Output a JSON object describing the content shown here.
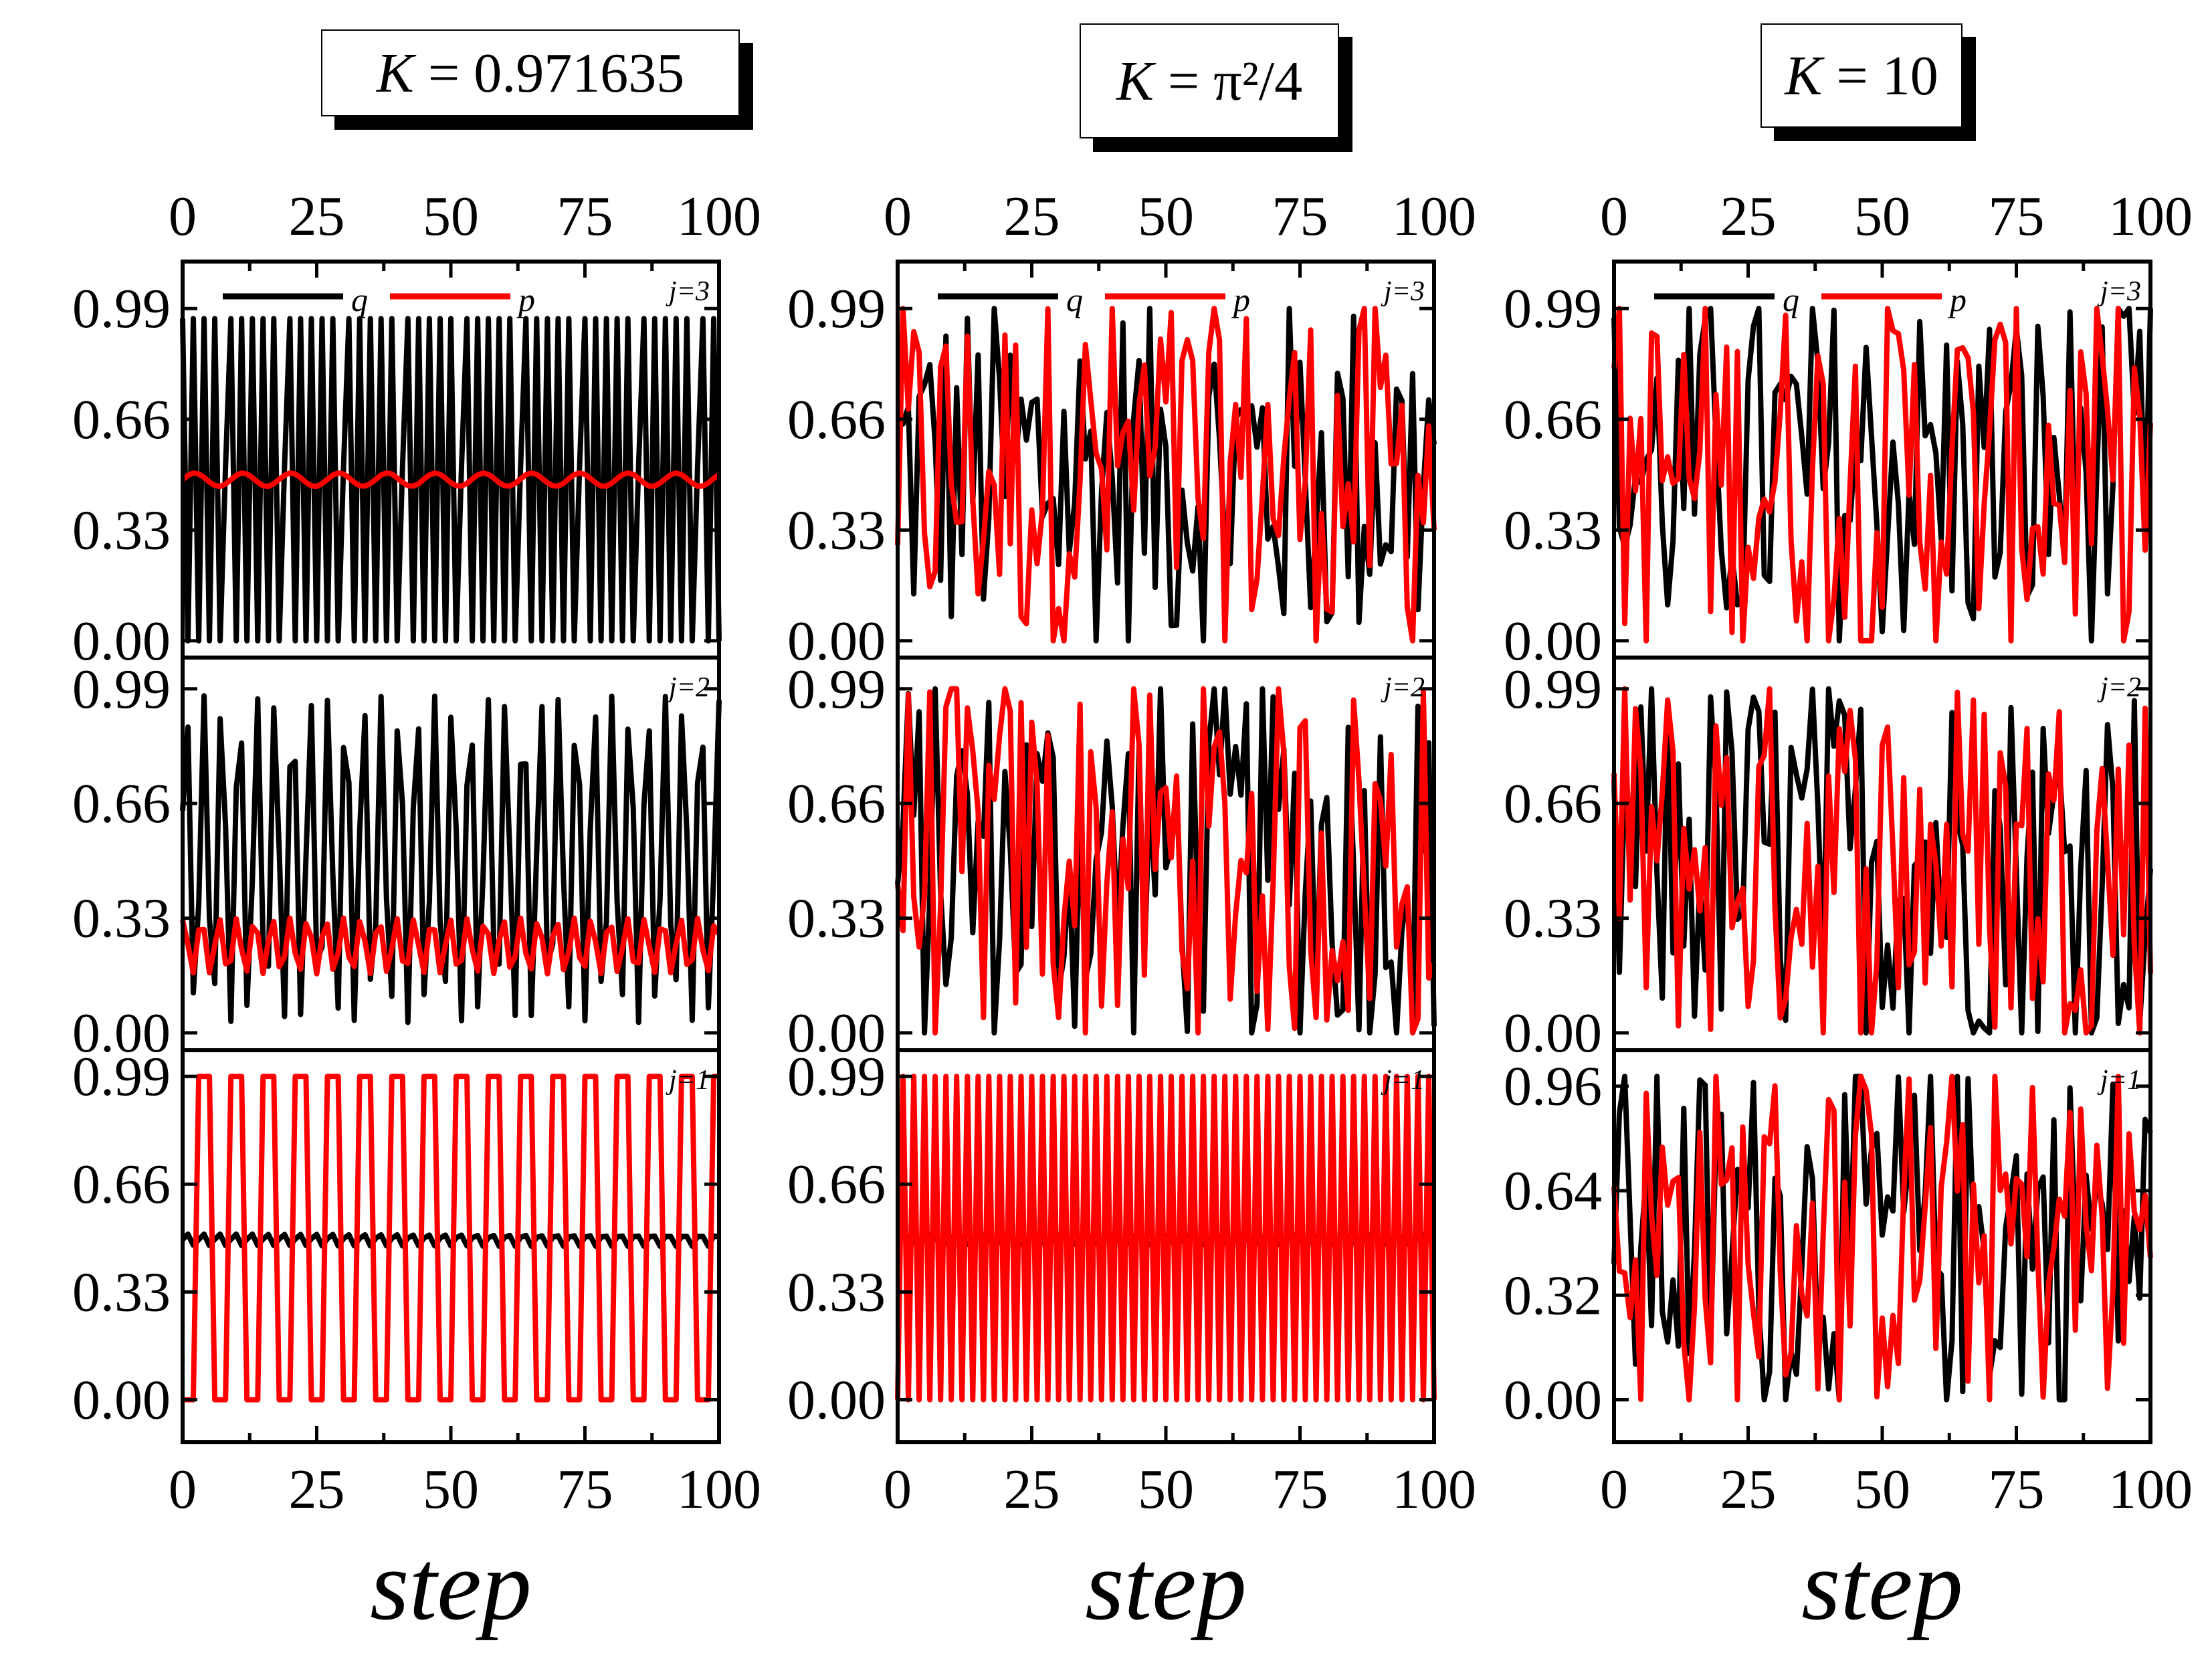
{
  "legend": {
    "q": "q",
    "p": "p"
  },
  "xlabel": "step",
  "columns": [
    {
      "title": {
        "k": "K",
        "rest": " = 0.971635"
      }
    },
    {
      "title": {
        "k": "K",
        "rest": " = π²/4"
      }
    },
    {
      "title": {
        "k": "K",
        "rest": " = 10"
      }
    }
  ],
  "chart_data": [
    {
      "type": "line",
      "panel": "K=0.971635, j=3",
      "title": "K = 0.971635",
      "xlabel": "step",
      "ylabel": "",
      "xlim": [
        0,
        100
      ],
      "ylim": [
        -0.05,
        1.13
      ],
      "xticks": [
        "0",
        "25",
        "50",
        "75",
        "100"
      ],
      "yticks": [
        "0.00",
        "0.33",
        "0.66",
        "0.99"
      ],
      "panel_label": "j=3",
      "gen": "alt4",
      "series": [
        {
          "name": "q",
          "color": "#000000",
          "values": []
        },
        {
          "name": "p",
          "color": "#ff0000",
          "values": []
        }
      ]
    },
    {
      "type": "line",
      "panel": "K=0.971635, j=2",
      "xlim": [
        0,
        100
      ],
      "ylim": [
        -0.05,
        1.08
      ],
      "xticks": [
        "0",
        "25",
        "50",
        "75",
        "100"
      ],
      "yticks": [
        "0.00",
        "0.33",
        "0.66",
        "0.99"
      ],
      "panel_label": "j=2",
      "gen": "tri",
      "series": [
        {
          "name": "q",
          "color": "#000000",
          "values": []
        },
        {
          "name": "p",
          "color": "#ff0000",
          "values": []
        }
      ]
    },
    {
      "type": "line",
      "panel": "K=0.971635, j=1",
      "xlim": [
        0,
        100
      ],
      "ylim": [
        -0.13,
        1.07
      ],
      "xticks": [
        "0",
        "25",
        "50",
        "75",
        "100"
      ],
      "yticks": [
        "0.00",
        "0.33",
        "0.66",
        "0.99"
      ],
      "panel_label": "j=1",
      "gen": "square3",
      "series": [
        {
          "name": "q",
          "color": "#000000",
          "values": []
        },
        {
          "name": "p",
          "color": "#ff0000",
          "values": []
        }
      ]
    },
    {
      "type": "line",
      "panel": "K=π²/4, j=3",
      "title": "K = π²/4",
      "xlabel": "step",
      "xlim": [
        0,
        100
      ],
      "ylim": [
        -0.05,
        1.13
      ],
      "xticks": [
        "0",
        "25",
        "50",
        "75",
        "100"
      ],
      "yticks": [
        "0.00",
        "0.33",
        "0.66",
        "0.99"
      ],
      "panel_label": "j=3",
      "gen": "chaos",
      "series": [
        {
          "name": "q",
          "color": "#000000",
          "values": []
        },
        {
          "name": "p",
          "color": "#ff0000",
          "values": []
        }
      ]
    },
    {
      "type": "line",
      "panel": "K=π²/4, j=2",
      "xlim": [
        0,
        100
      ],
      "ylim": [
        -0.05,
        1.08
      ],
      "xticks": [
        "0",
        "25",
        "50",
        "75",
        "100"
      ],
      "yticks": [
        "0.00",
        "0.33",
        "0.66",
        "0.99"
      ],
      "panel_label": "j=2",
      "gen": "chaos",
      "series": [
        {
          "name": "q",
          "color": "#000000",
          "values": []
        },
        {
          "name": "p",
          "color": "#ff0000",
          "values": []
        }
      ]
    },
    {
      "type": "line",
      "panel": "K=π²/4, j=1",
      "xlim": [
        0,
        100
      ],
      "ylim": [
        -0.13,
        1.07
      ],
      "xticks": [
        "0",
        "25",
        "50",
        "75",
        "100"
      ],
      "yticks": [
        "0.00",
        "0.33",
        "0.66",
        "0.99"
      ],
      "panel_label": "j=1",
      "gen": "square1",
      "series": [
        {
          "name": "q",
          "color": "#000000",
          "values": []
        },
        {
          "name": "p",
          "color": "#ff0000",
          "values": []
        }
      ]
    },
    {
      "type": "line",
      "panel": "K=10, j=3",
      "title": "K = 10",
      "xlabel": "step",
      "xlim": [
        0,
        100
      ],
      "ylim": [
        -0.05,
        1.13
      ],
      "xticks": [
        "0",
        "25",
        "50",
        "75",
        "100"
      ],
      "yticks": [
        "0.00",
        "0.33",
        "0.66",
        "0.99"
      ],
      "panel_label": "j=3",
      "gen": "chaos",
      "series": [
        {
          "name": "q",
          "color": "#000000",
          "values": []
        },
        {
          "name": "p",
          "color": "#ff0000",
          "values": []
        }
      ]
    },
    {
      "type": "line",
      "panel": "K=10, j=2",
      "xlim": [
        0,
        100
      ],
      "ylim": [
        -0.05,
        1.08
      ],
      "xticks": [
        "0",
        "25",
        "50",
        "75",
        "100"
      ],
      "yticks": [
        "0.00",
        "0.33",
        "0.66",
        "0.99"
      ],
      "panel_label": "j=2",
      "gen": "chaos",
      "series": [
        {
          "name": "q",
          "color": "#000000",
          "values": []
        },
        {
          "name": "p",
          "color": "#ff0000",
          "values": []
        }
      ]
    },
    {
      "type": "line",
      "panel": "K=10, j=1",
      "xlim": [
        0,
        100
      ],
      "ylim": [
        -0.13,
        1.07
      ],
      "xticks": [
        "0",
        "25",
        "50",
        "75",
        "100"
      ],
      "yticks": [
        "0.00",
        "0.32",
        "0.64",
        "0.96"
      ],
      "panel_label": "j=1",
      "gen": "chaos",
      "series": [
        {
          "name": "q",
          "color": "#000000",
          "values": []
        },
        {
          "name": "p",
          "color": "#ff0000",
          "values": []
        }
      ]
    }
  ]
}
